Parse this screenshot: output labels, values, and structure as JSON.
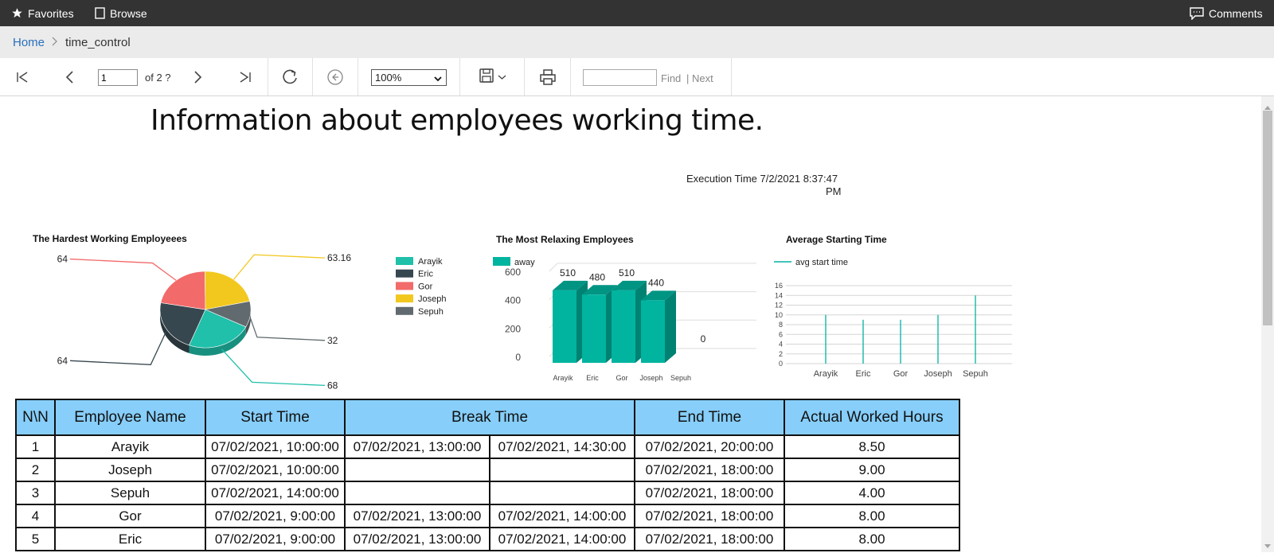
{
  "topbar": {
    "favorites": "Favorites",
    "browse": "Browse",
    "comments": "Comments"
  },
  "breadcrumb": {
    "home": "Home",
    "current": "time_control"
  },
  "toolbar": {
    "page_value": "1",
    "page_of": "of 2 ?",
    "zoom": "100%",
    "find_value": "",
    "find_label": "Find",
    "next_label": "| Next"
  },
  "report": {
    "title": "Information about employees working time.",
    "exec_time": "Execution Time 7/2/2021 8:37:47",
    "exec_pm": "PM"
  },
  "chart_data": [
    {
      "type": "pie",
      "title": "The Hardest Working Employeees",
      "categories": [
        "Arayik",
        "Eric",
        "Gor",
        "Joseph",
        "Sepuh"
      ],
      "values": [
        68,
        64,
        64,
        63.16,
        32
      ],
      "data_labels": [
        "68",
        "64",
        "64",
        "63.16",
        "32"
      ],
      "colors": [
        "#20c0aa",
        "#37474f",
        "#f26a6a",
        "#f2c81f",
        "#616a6e"
      ],
      "legend": "right"
    },
    {
      "type": "bar",
      "title": "The Most Relaxing Employees",
      "categories": [
        "Arayik",
        "Eric",
        "Gor",
        "Joseph",
        "Sepuh"
      ],
      "series": [
        {
          "name": "away",
          "values": [
            510,
            480,
            510,
            440,
            0
          ]
        }
      ],
      "ylim": [
        0,
        700
      ],
      "yticks": [
        "0",
        "200",
        "400",
        "600"
      ],
      "color": "#00b4a0",
      "legend": "top-left"
    },
    {
      "type": "line",
      "title": "Average Starting Time",
      "categories": [
        "Arayik",
        "Eric",
        "Gor",
        "Joseph",
        "Sepuh"
      ],
      "series": [
        {
          "name": "avg start time",
          "values": [
            10,
            9,
            9,
            10,
            14
          ]
        }
      ],
      "ylim": [
        0,
        16
      ],
      "yticks": [
        "0",
        "2",
        "4",
        "6",
        "8",
        "10",
        "12",
        "14",
        "16"
      ],
      "color": "#00b4a0",
      "legend": "top-left"
    }
  ],
  "table": {
    "headers": [
      "N\\N",
      "Employee Name",
      "Start Time",
      "Break Time",
      "End Time",
      "Actual Worked Hours"
    ],
    "rows": [
      [
        "1",
        "Arayik",
        "07/02/2021, 10:00:00",
        "07/02/2021, 13:00:00",
        "07/02/2021, 14:30:00",
        "07/02/2021, 20:00:00",
        "8.50"
      ],
      [
        "2",
        "Joseph",
        "07/02/2021, 10:00:00",
        "",
        "",
        "07/02/2021, 18:00:00",
        "9.00"
      ],
      [
        "3",
        "Sepuh",
        "07/02/2021, 14:00:00",
        "",
        "",
        "07/02/2021, 18:00:00",
        "4.00"
      ],
      [
        "4",
        "Gor",
        "07/02/2021, 9:00:00",
        "07/02/2021, 13:00:00",
        "07/02/2021, 14:00:00",
        "07/02/2021, 18:00:00",
        "8.00"
      ],
      [
        "5",
        "Eric",
        "07/02/2021, 9:00:00",
        "07/02/2021, 13:00:00",
        "07/02/2021, 14:00:00",
        "07/02/2021, 18:00:00",
        "8.00"
      ]
    ]
  }
}
